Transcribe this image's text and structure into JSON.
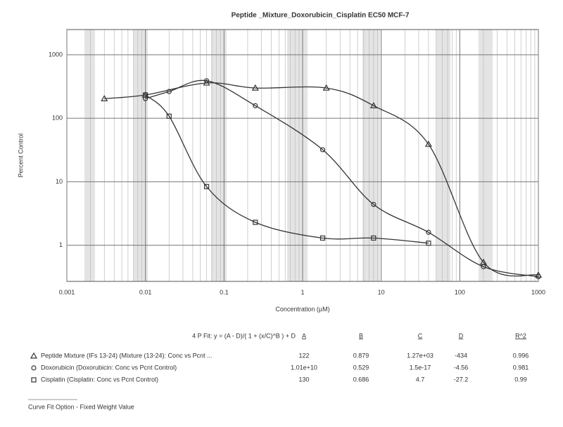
{
  "chart_data": {
    "type": "line",
    "title": "Peptide _Mixture_Doxorubicin_Cisplatin EC50 MCF-7",
    "x_label": "Concentration (µM)",
    "y_label": "Percent Control",
    "x_log": true,
    "y_log": true,
    "grid": true,
    "xlim": [
      0.001,
      1000
    ],
    "xticks": [
      0.001,
      0.01,
      0.1,
      1,
      10,
      100,
      1000
    ],
    "ylim": [
      0.27,
      2500
    ],
    "yticks": [
      1,
      10,
      100,
      1000
    ],
    "series": [
      {
        "name": "Peptide Mixture",
        "color": "#333333",
        "marker": "triangle",
        "x": [
          0.003,
          0.01,
          0.06,
          0.25,
          2,
          8,
          40,
          200,
          1000
        ],
        "values": [
          204,
          233,
          360,
          300,
          300,
          158,
          39,
          0.54,
          0.34
        ]
      },
      {
        "name": "Doxorubicin",
        "color": "#333333",
        "marker": "circle",
        "x": [
          0.01,
          0.02,
          0.06,
          0.25,
          1.8,
          8,
          40,
          200,
          1000
        ],
        "values": [
          204,
          264,
          390,
          158,
          32,
          4.4,
          1.6,
          0.46,
          0.32
        ]
      },
      {
        "name": "Cisplatin",
        "color": "#333333",
        "marker": "square",
        "x": [
          0.01,
          0.02,
          0.06,
          0.25,
          1.8,
          8,
          40
        ],
        "values": [
          233,
          108,
          8.4,
          2.3,
          1.3,
          1.3,
          1.08
        ]
      }
    ]
  },
  "fit_table": {
    "equation": "4 P Fit: y = (A - D)/( 1 + (x/C)^B ) + D",
    "columns": [
      "A",
      "B",
      "C",
      "D",
      "R^2"
    ],
    "rows": [
      {
        "name": "Peptide Mixture (IFs 13-24) (Mixture (13-24): Conc vs Pcnt ...",
        "cells": [
          "122",
          "0.879",
          "1.27e+03",
          "-434",
          "0.996"
        ]
      },
      {
        "name": "Doxorubicin (Doxorubicin: Conc vs Pcnt Control)",
        "cells": [
          "1.01e+10",
          "0.529",
          "1.5e-17",
          "-4.56",
          "0.981"
        ]
      },
      {
        "name": "Cisplatin (Cisplatin: Conc vs Pcnt Control)",
        "cells": [
          "130",
          "0.686",
          "4.7",
          "-27.2",
          "0.99"
        ]
      }
    ],
    "footer": "Curve Fit Option - Fixed Weight Value"
  }
}
